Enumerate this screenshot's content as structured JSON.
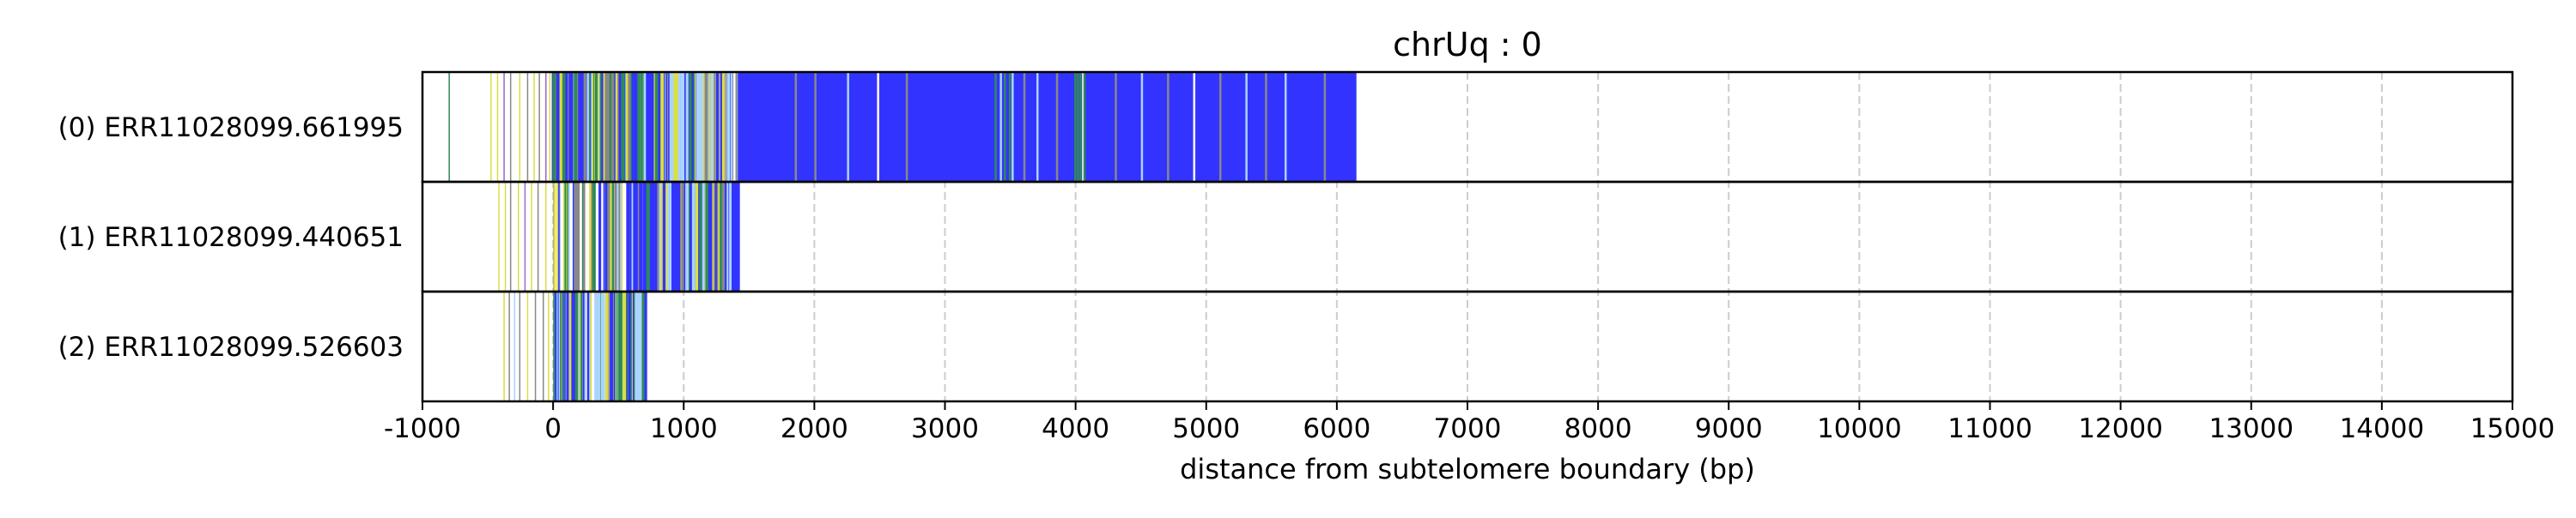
{
  "chart_data": {
    "type": "bar",
    "title": "chrUq : 0",
    "xlabel": "distance from subtelomere boundary (bp)",
    "ylabel": "",
    "xlim": [
      -1000,
      15000
    ],
    "xticks": [
      -1000,
      0,
      1000,
      2000,
      3000,
      4000,
      5000,
      6000,
      7000,
      8000,
      9000,
      10000,
      11000,
      12000,
      13000,
      14000,
      15000
    ],
    "grid": "vertical dashed at x ticks",
    "colors": {
      "background": "#ffffff",
      "grid": "#cccccc",
      "frame": "#000000",
      "blue": "#3333ff",
      "light_blue": "#aad4ff",
      "green": "#2e8b57",
      "yellow": "#dddd44",
      "gray": "#888888",
      "purple": "#9966cc"
    },
    "rows": [
      {
        "label": "(0) ERR11028099.661995",
        "read_extent": [
          -800,
          6150
        ],
        "blue_block": [
          -10,
          6150
        ],
        "sparse_features": [
          {
            "x": -800,
            "c": "green"
          },
          {
            "x": -480,
            "c": "yellow"
          },
          {
            "x": -430,
            "c": "yellow"
          },
          {
            "x": -380,
            "c": "purple"
          },
          {
            "x": -330,
            "c": "gray"
          },
          {
            "x": -260,
            "c": "yellow"
          },
          {
            "x": -200,
            "c": "gray"
          },
          {
            "x": -150,
            "c": "yellow"
          },
          {
            "x": -110,
            "c": "gray"
          },
          {
            "x": -60,
            "c": "purple"
          },
          {
            "x": -30,
            "c": "yellow"
          }
        ],
        "dense_region": [
          -10,
          1400
        ],
        "dense_mix": [
          "green",
          "yellow",
          "light_blue",
          "gray"
        ],
        "dense_count": 120,
        "block_features": [
          {
            "x": 1380,
            "c": "white"
          },
          {
            "x": 1850,
            "c": "gray"
          },
          {
            "x": 2000,
            "c": "gray"
          },
          {
            "x": 2250,
            "c": "light_blue"
          },
          {
            "x": 2480,
            "c": "white"
          },
          {
            "x": 2700,
            "c": "gray"
          },
          {
            "x": 3380,
            "c": "green"
          },
          {
            "x": 3420,
            "c": "light_blue"
          },
          {
            "x": 3450,
            "c": "green"
          },
          {
            "x": 3490,
            "c": "green"
          },
          {
            "x": 3510,
            "c": "light_blue"
          },
          {
            "x": 3600,
            "c": "gray"
          },
          {
            "x": 3700,
            "c": "light_blue"
          },
          {
            "x": 3850,
            "c": "gray"
          },
          {
            "x": 3990,
            "c": "green"
          },
          {
            "x": 4010,
            "c": "green"
          },
          {
            "x": 4030,
            "c": "green"
          },
          {
            "x": 4050,
            "c": "white"
          },
          {
            "x": 4060,
            "c": "green"
          },
          {
            "x": 4300,
            "c": "gray"
          },
          {
            "x": 4500,
            "c": "light_blue"
          },
          {
            "x": 4700,
            "c": "gray"
          },
          {
            "x": 4900,
            "c": "white"
          },
          {
            "x": 5100,
            "c": "gray"
          },
          {
            "x": 5300,
            "c": "light_blue"
          },
          {
            "x": 5450,
            "c": "gray"
          },
          {
            "x": 5600,
            "c": "light_blue"
          },
          {
            "x": 5900,
            "c": "gray"
          }
        ]
      },
      {
        "label": "(1) ERR11028099.440651",
        "read_extent": [
          -420,
          1430
        ],
        "blue_block": [
          560,
          1430
        ],
        "sparse_features": [
          {
            "x": -420,
            "c": "yellow"
          },
          {
            "x": -370,
            "c": "yellow"
          },
          {
            "x": -330,
            "c": "gray"
          },
          {
            "x": -270,
            "c": "yellow"
          },
          {
            "x": -220,
            "c": "purple"
          },
          {
            "x": -170,
            "c": "yellow"
          },
          {
            "x": -120,
            "c": "gray"
          },
          {
            "x": -60,
            "c": "yellow"
          }
        ],
        "dense_region": [
          -10,
          1380
        ],
        "dense_mix": [
          "green",
          "yellow",
          "light_blue",
          "gray",
          "blue"
        ],
        "dense_count": 110,
        "block_features": []
      },
      {
        "label": "(2) ERR11028099.526603",
        "read_extent": [
          -380,
          720
        ],
        "blue_block": [
          560,
          720
        ],
        "sparse_features": [
          {
            "x": -380,
            "c": "yellow"
          },
          {
            "x": -340,
            "c": "gray"
          },
          {
            "x": -300,
            "c": "light_blue"
          },
          {
            "x": -260,
            "c": "gray"
          },
          {
            "x": -200,
            "c": "yellow"
          },
          {
            "x": -140,
            "c": "gray"
          },
          {
            "x": -80,
            "c": "gray"
          },
          {
            "x": -40,
            "c": "yellow"
          }
        ],
        "dense_region": [
          0,
          700
        ],
        "dense_mix": [
          "green",
          "yellow",
          "blue",
          "light_blue",
          "green"
        ],
        "dense_count": 90,
        "block_features": []
      }
    ]
  }
}
